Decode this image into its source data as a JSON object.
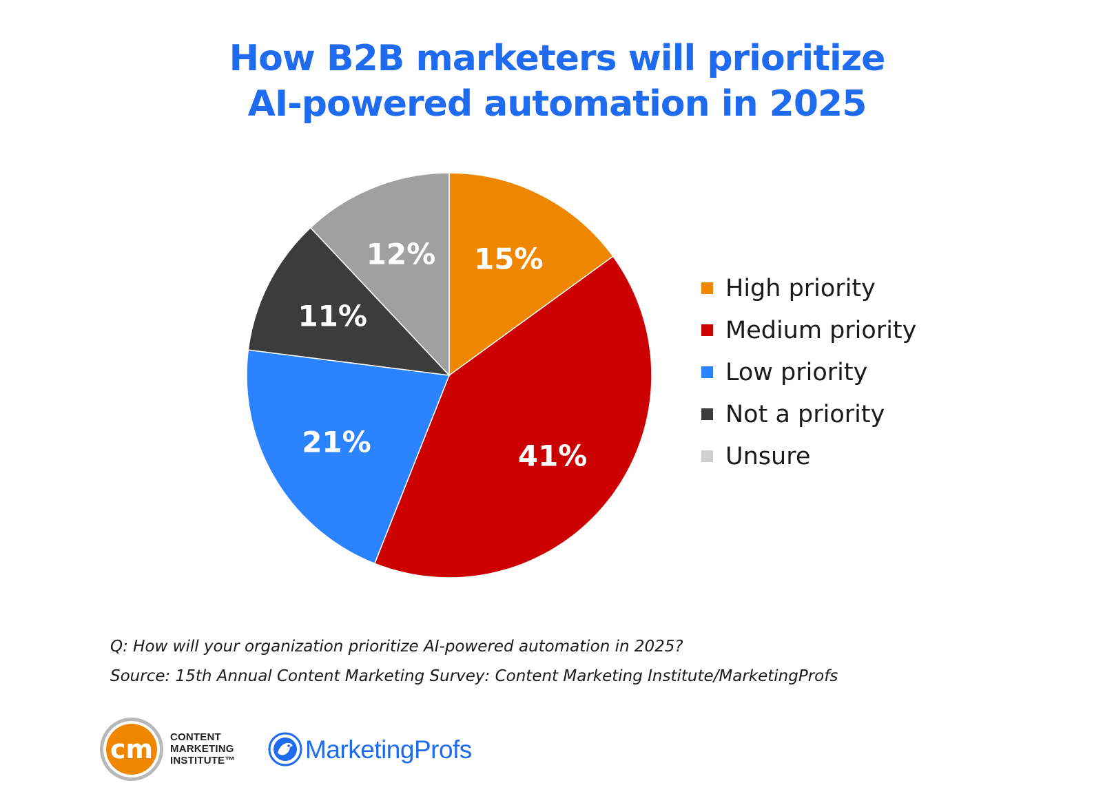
{
  "chart_data": {
    "type": "pie",
    "title_lines": [
      "How B2B marketers will prioritize",
      "AI-powered automation in 2025"
    ],
    "slices": [
      {
        "label": "High priority",
        "value": 15,
        "display": "15%",
        "color": "#ee8600"
      },
      {
        "label": "Medium priority",
        "value": 41,
        "display": "41%",
        "color": "#cc0000"
      },
      {
        "label": "Low priority",
        "value": 21,
        "display": "21%",
        "color": "#2b83ff"
      },
      {
        "label": "Not a priority",
        "value": 11,
        "display": "11%",
        "color": "#3c3c3c"
      },
      {
        "label": "Unsure",
        "value": 12,
        "display": "12%",
        "color": "#a0a0a0"
      }
    ],
    "legend_swatch_colors": [
      "#ee8600",
      "#cc0000",
      "#2b83ff",
      "#3c3c3c",
      "#d0d0d0"
    ],
    "start_angle_deg": 0,
    "direction": "clockwise",
    "legend_position": "right"
  },
  "notes": {
    "question": "Q: How will your organization prioritize AI-powered automation in 2025?",
    "source": "Source: 15th Annual Content Marketing Survey: Content Marketing Institute/MarketingProfs"
  },
  "logos": {
    "cmi_mark": "cm",
    "cmi_line1": "CONTENT",
    "cmi_line2": "MARKETING",
    "cmi_line3": "INSTITUTE™",
    "mp_text": "MarketingProfs",
    "cmi_ring_color": "#ee8600",
    "mp_color": "#1f6bf0"
  }
}
